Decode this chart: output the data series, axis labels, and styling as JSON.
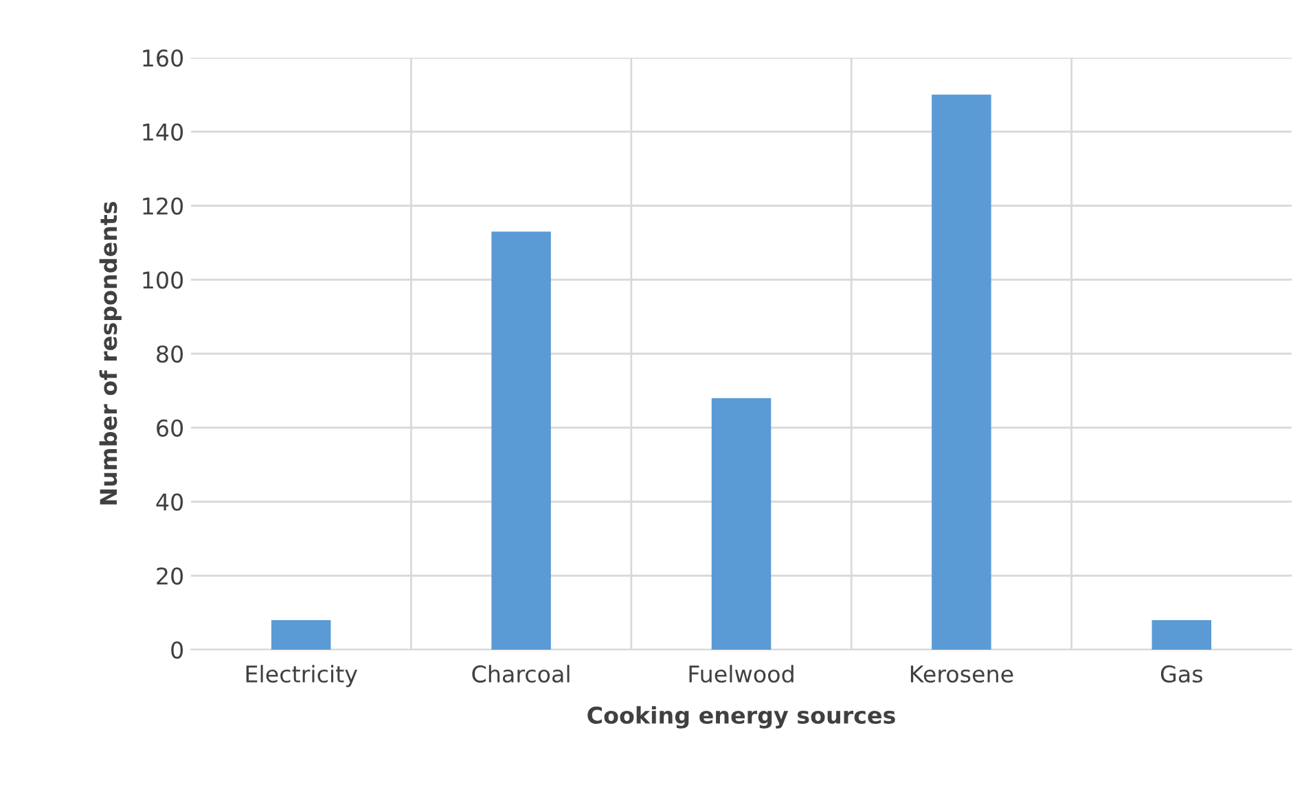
{
  "chart_data": {
    "type": "bar",
    "xlabel": "Cooking energy sources",
    "ylabel": "Number of respondents",
    "categories": [
      "Electricity",
      "Charcoal",
      "Fuelwood",
      "Kerosene",
      "Gas"
    ],
    "values": [
      8,
      113,
      68,
      150,
      8
    ],
    "color": "#5b9bd5",
    "ylim": [
      0,
      160
    ],
    "yticks": [
      0,
      20,
      40,
      60,
      80,
      100,
      120,
      140,
      160
    ],
    "grid": true
  }
}
